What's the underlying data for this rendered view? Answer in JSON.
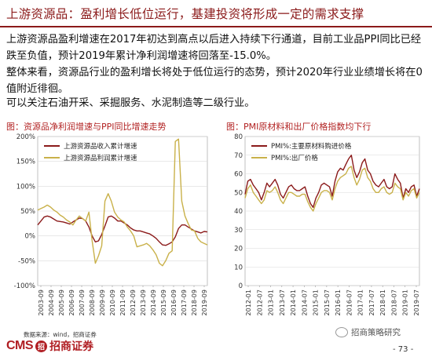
{
  "header": {
    "title": "上游资源品：盈利增长低位运行，基建投资将形成一定的需求支撑"
  },
  "body": {
    "p1": "上游资源品盈利增速在2017年初达到高点以后进入持续下行通道，目前工业品PPI同比已经跌至负值，预计2019年累计净利润增速将回落至-15.0%。",
    "p2": "整体来看，资源品行业的盈利增长将处于低位运行的态势，预计2020年行业业绩增长将在0值附近徘徊。",
    "p3": "可以关注石油开采、采掘服务、水泥制造等二级行业。"
  },
  "colors": {
    "brand": "#8b1a1a",
    "dark_line": "#8b1a1a",
    "gold_line": "#c9b14a",
    "grid": "#d9d9d9"
  },
  "chart_data": [
    {
      "type": "line",
      "title": "图：资源品净利润增速与PPI同比增速走势",
      "legend_position": "top-left",
      "grid": true,
      "yticks": [
        "-100%",
        "-50%",
        "0%",
        "50%",
        "100%",
        "150%",
        "200%"
      ],
      "ylim": [
        -100,
        200
      ],
      "xticks": [
        "2003-09",
        "2004-09",
        "2005-09",
        "2006-09",
        "2007-09",
        "2008-09",
        "2009-09",
        "2010-09",
        "2011-09",
        "2012-09",
        "2013-09",
        "2014-09",
        "2015-09",
        "2016-09",
        "2017-09",
        "2018-09",
        "2019-09"
      ],
      "series": [
        {
          "name": "上游资源品收入累计增速",
          "color": "#8b1a1a",
          "values": [
            22,
            30,
            38,
            40,
            38,
            34,
            30,
            29,
            28,
            26,
            24,
            28,
            32,
            36,
            35,
            30,
            18,
            0,
            -12,
            -10,
            3,
            20,
            38,
            40,
            36,
            30,
            30,
            26,
            22,
            16,
            12,
            10,
            10,
            8,
            6,
            4,
            0,
            -5,
            -12,
            -18,
            -19,
            -16,
            -12,
            -2,
            15,
            22,
            22,
            18,
            14,
            10,
            8,
            6,
            9,
            8
          ]
        },
        {
          "name": "上游资源品利润累计增速",
          "color": "#c9b14a",
          "values": [
            52,
            55,
            58,
            62,
            58,
            52,
            48,
            42,
            38,
            32,
            28,
            22,
            32,
            40,
            35,
            30,
            48,
            -10,
            -55,
            -40,
            -20,
            70,
            85,
            70,
            48,
            38,
            32,
            28,
            18,
            10,
            0,
            -22,
            -20,
            -18,
            -15,
            -20,
            -28,
            -38,
            -55,
            -60,
            -50,
            -35,
            -30,
            190,
            195,
            70,
            40,
            25,
            12,
            10,
            -5,
            -12,
            -15,
            -18
          ]
        }
      ]
    },
    {
      "type": "line",
      "title": "图：PMI原材料和出厂价格指数均下行",
      "legend_position": "top-left",
      "grid": true,
      "yticks": [
        "0",
        "10",
        "20",
        "30",
        "40",
        "50",
        "60",
        "70",
        "80"
      ],
      "ylim": [
        0,
        80
      ],
      "xticks": [
        "2012-01",
        "2012-07",
        "2013-01",
        "2013-07",
        "2014-01",
        "2014-07",
        "2015-01",
        "2015-07",
        "2016-01",
        "2016-07",
        "2017-01",
        "2017-07",
        "2018-01",
        "2018-07",
        "2019-01",
        "2019-07"
      ],
      "series": [
        {
          "name": "PMI%:主要原材料购进价格",
          "color": "#8b1a1a",
          "values": [
            49,
            56,
            57,
            54,
            52,
            50,
            46,
            50,
            55,
            53,
            55,
            57,
            54,
            49,
            47,
            50,
            53,
            54,
            52,
            51,
            51,
            52,
            53,
            48,
            44,
            42,
            47,
            50,
            54,
            55,
            54,
            53,
            48,
            56,
            61,
            63,
            62,
            65,
            68,
            70,
            62,
            58,
            61,
            66,
            68,
            62,
            60,
            56,
            54,
            53,
            55,
            57,
            53,
            52,
            53,
            60,
            57,
            55,
            47,
            52,
            50,
            53,
            54,
            48,
            52
          ]
        },
        {
          "name": "PMI%:出厂价格",
          "color": "#c9b14a",
          "values": [
            47,
            52,
            54,
            50,
            48,
            46,
            44,
            46,
            51,
            50,
            51,
            53,
            50,
            46,
            44,
            47,
            50,
            50,
            49,
            48,
            48,
            49,
            49,
            45,
            42,
            40,
            44,
            47,
            50,
            51,
            51,
            50,
            46,
            52,
            56,
            58,
            59,
            60,
            63,
            64,
            58,
            54,
            57,
            62,
            63,
            58,
            56,
            52,
            50,
            50,
            52,
            53,
            50,
            49,
            50,
            55,
            53,
            52,
            46,
            50,
            48,
            51,
            52,
            47,
            50
          ]
        }
      ]
    }
  ],
  "footer": {
    "source": "数据来源：wind，招商证券",
    "logo_en": "CMS",
    "logo_badge": "招",
    "logo_cn": "招商证券",
    "wechat": "招商策略研究",
    "page": "- 73 -"
  }
}
